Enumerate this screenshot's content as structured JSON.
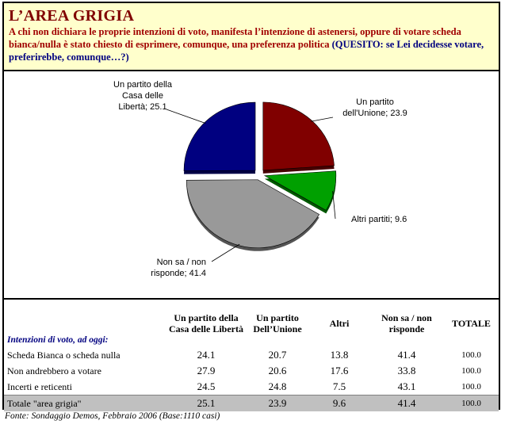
{
  "title": "L’AREA GRIGIA",
  "intro": {
    "text": "A chi non dichiara le proprie intenzioni di voto, manifesta l’intenzione di astenersi, oppure di votare scheda bianca/nulla è stato chiesto di esprimere, comunque, una preferenza politica",
    "question": "(QUESITO: se Lei decidesse votare, preferirebbe, comunque…?)"
  },
  "chart_data": {
    "type": "pie",
    "slices": [
      {
        "label": "Un partito dell'Unione",
        "value": 23.9,
        "color": "#800000"
      },
      {
        "label": "Altri partiti",
        "value": 9.6,
        "color": "#00a000"
      },
      {
        "label": "Non sa / non risponde",
        "value": 41.4,
        "color": "#999999"
      },
      {
        "label": "Un partito della Casa delle Libertà",
        "value": 25.1,
        "color": "#000080"
      }
    ],
    "data_labels": [
      [
        "Un partito",
        "dell'Unione; 23.9"
      ],
      [
        "Altri partiti; 9.6"
      ],
      [
        "Non sa / non",
        "risponde; 41.4"
      ],
      [
        "Un partito della",
        "Casa delle",
        "Libertà; 25.1"
      ]
    ]
  },
  "table": {
    "row_header": "Intenzioni di voto, ad oggi:",
    "columns": [
      "Un partito della Casa delle Libertà",
      "Un partito Dell’Unione",
      "Altri",
      "Non sa / non risponde",
      "TOTALE"
    ],
    "rows": [
      {
        "label": "Scheda Bianca o scheda nulla",
        "values": [
          "24.1",
          "20.7",
          "13.8",
          "41.4",
          "100.0"
        ]
      },
      {
        "label": "Non andrebbero a votare",
        "values": [
          "27.9",
          "20.6",
          "17.6",
          "33.8",
          "100.0"
        ]
      },
      {
        "label": "Incerti e reticenti",
        "values": [
          "24.5",
          "24.8",
          "7.5",
          "43.1",
          "100.0"
        ]
      },
      {
        "label": "Totale \"area grigia\"",
        "values": [
          "25.1",
          "23.9",
          "9.6",
          "41.4",
          "100.0"
        ]
      }
    ]
  },
  "source": "Fonte: Sondaggio Demos, Febbraio 2006 (Base:1110 casi)"
}
